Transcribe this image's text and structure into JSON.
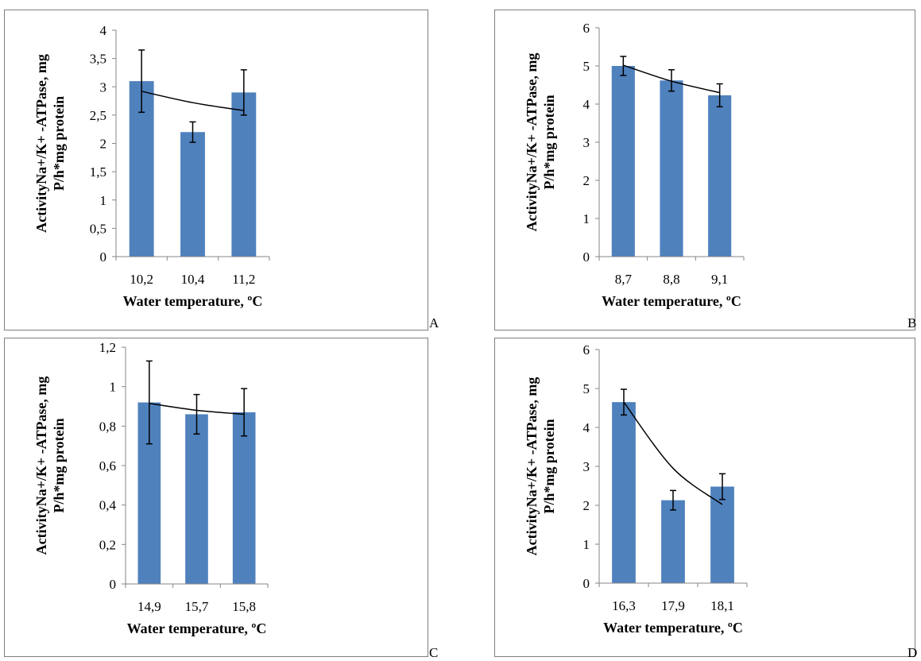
{
  "chart_data": [
    {
      "panel": "A",
      "type": "bar",
      "categories": [
        "10,2",
        "10,4",
        "11,2"
      ],
      "values": [
        3.1,
        2.2,
        2.9
      ],
      "error": [
        0.55,
        0.18,
        0.4
      ],
      "trend": [
        2.92,
        2.72,
        2.58
      ],
      "ylim": [
        0,
        4
      ],
      "yticks": [
        "0",
        "0,5",
        "1",
        "1,5",
        "2",
        "2,5",
        "3",
        "3,5",
        "4"
      ],
      "ytick_values": [
        0,
        0.5,
        1,
        1.5,
        2,
        2.5,
        3,
        3.5,
        4
      ],
      "xlabel": "Water temperature, ºC",
      "ylabel_line1": "ActivityNa+/K+ -ATPase, mg",
      "ylabel_line2": "P/h*mg protein"
    },
    {
      "panel": "B",
      "type": "bar",
      "categories": [
        "8,7",
        "8,8",
        "9,1"
      ],
      "values": [
        5.0,
        4.62,
        4.23
      ],
      "error": [
        0.25,
        0.28,
        0.3
      ],
      "trend": [
        5.02,
        4.6,
        4.3
      ],
      "ylim": [
        0,
        6
      ],
      "yticks": [
        "0",
        "1",
        "2",
        "3",
        "4",
        "5",
        "6"
      ],
      "ytick_values": [
        0,
        1,
        2,
        3,
        4,
        5,
        6
      ],
      "xlabel": "Water temperature, ºC",
      "ylabel_line1": "ActivityNa+/K+ -ATPase, mg",
      "ylabel_line2": "P/h*mg protein"
    },
    {
      "panel": "C",
      "type": "bar",
      "categories": [
        "14,9",
        "15,7",
        "15,8"
      ],
      "values": [
        0.92,
        0.86,
        0.87
      ],
      "error": [
        0.21,
        0.1,
        0.12
      ],
      "trend": [
        0.915,
        0.88,
        0.86
      ],
      "ylim": [
        0,
        1.2
      ],
      "yticks": [
        "0",
        "0,2",
        "0,4",
        "0,6",
        "0,8",
        "1",
        "1,2"
      ],
      "ytick_values": [
        0,
        0.2,
        0.4,
        0.6,
        0.8,
        1.0,
        1.2
      ],
      "xlabel": "Water temperature, ºC",
      "ylabel_line1": "ActivityNa+/K+ -ATPase, mg",
      "ylabel_line2": "P/h*mg protein"
    },
    {
      "panel": "D",
      "type": "bar",
      "categories": [
        "16,3",
        "17,9",
        "18,1"
      ],
      "values": [
        4.65,
        2.13,
        2.48
      ],
      "error": [
        0.33,
        0.25,
        0.33
      ],
      "trend": [
        4.65,
        2.95,
        2.02
      ],
      "ylim": [
        0,
        6
      ],
      "yticks": [
        "0",
        "1",
        "2",
        "3",
        "4",
        "5",
        "6"
      ],
      "ytick_values": [
        0,
        1,
        2,
        3,
        4,
        5,
        6
      ],
      "xlabel": "Water temperature, ºC",
      "ylabel_line1": "ActivityNa+/K+ -ATPase, mg",
      "ylabel_line2": "P/h*mg protein"
    }
  ],
  "colors": {
    "bar": "#4f81bd",
    "line": "#000000",
    "axis": "#868686"
  }
}
